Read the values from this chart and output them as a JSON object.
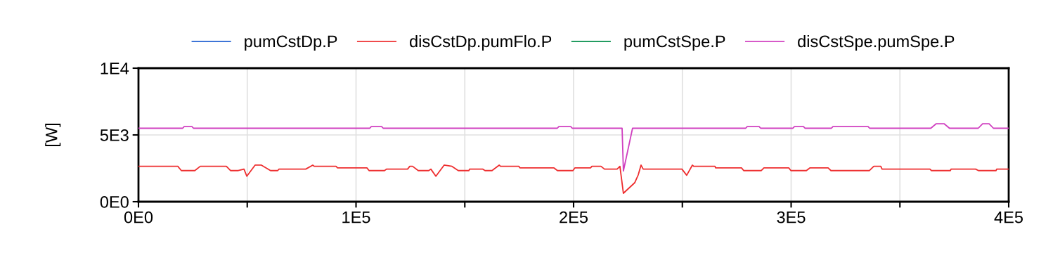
{
  "chart_data": {
    "type": "line",
    "ylabel": "[W]",
    "xlim": [
      0,
      400000
    ],
    "ylim": [
      0,
      10000
    ],
    "xticks": [
      {
        "value": 0,
        "label": "0E0"
      },
      {
        "value": 50000,
        "label": null
      },
      {
        "value": 100000,
        "label": "1E5"
      },
      {
        "value": 150000,
        "label": null
      },
      {
        "value": 200000,
        "label": "2E5"
      },
      {
        "value": 250000,
        "label": null
      },
      {
        "value": 300000,
        "label": "3E5"
      },
      {
        "value": 350000,
        "label": null
      },
      {
        "value": 400000,
        "label": "4E5"
      }
    ],
    "yticks": [
      {
        "value": 0,
        "label": "0E0"
      },
      {
        "value": 5000,
        "label": "5E3"
      },
      {
        "value": 10000,
        "label": "1E4"
      }
    ],
    "grid": true,
    "legend": "top",
    "line_style": "solid",
    "marker": "none",
    "x": [
      0,
      18100,
      19700,
      25900,
      28400,
      40400,
      42300,
      45900,
      48500,
      49800,
      53600,
      56500,
      60700,
      64000,
      64600,
      76900,
      80100,
      80800,
      90800,
      91500,
      105000,
      106000,
      113100,
      114000,
      123700,
      124700,
      126000,
      128600,
      133400,
      134400,
      136700,
      140500,
      144100,
      147000,
      151900,
      152200,
      158300,
      159300,
      162500,
      165800,
      166400,
      174800,
      175400,
      191000,
      192600,
      199700,
      200600,
      207800,
      208400,
      212600,
      214200,
      220000,
      221300,
      222900,
      228100,
      229700,
      231000,
      232000,
      249800,
      252000,
      254600,
      255200,
      265000,
      265300,
      277200,
      278200,
      286300,
      287500,
      298900,
      299900,
      307000,
      308600,
      317000,
      318300,
      336000,
      338000,
      341200,
      341800,
      363800,
      364500,
      373200,
      373500,
      384800,
      386100,
      394200,
      394500,
      400000
    ],
    "series": [
      {
        "name": "pumCstDp.P",
        "color": "#1f5fd0",
        "values": [
          null,
          null,
          null,
          null,
          null,
          null,
          null,
          null,
          null,
          null,
          null,
          null,
          null,
          null,
          null,
          null,
          null,
          null,
          null,
          null,
          null,
          null,
          null,
          null,
          null,
          null,
          null,
          null,
          null,
          null,
          null,
          null,
          null,
          null,
          null,
          null,
          null,
          null,
          null,
          null,
          null,
          null,
          null,
          null,
          null,
          null,
          null,
          null,
          null,
          null,
          null,
          null,
          null,
          null,
          null,
          null,
          null,
          null,
          null,
          null,
          null,
          null,
          null,
          null,
          null,
          null,
          null,
          null,
          null,
          null,
          null,
          null,
          null,
          null,
          null,
          null,
          null,
          null,
          null,
          null,
          null,
          null,
          null,
          null,
          null,
          null,
          null
        ]
      },
      {
        "name": "disCstDp.pumFlo.P",
        "color": "#ee2e2f",
        "values": [
          2650,
          2650,
          2330,
          2330,
          2650,
          2650,
          2330,
          2330,
          2440,
          1910,
          2740,
          2740,
          2330,
          2330,
          2440,
          2440,
          2740,
          2650,
          2650,
          2530,
          2530,
          2330,
          2330,
          2440,
          2440,
          2650,
          2650,
          2330,
          2330,
          2440,
          1910,
          2740,
          2650,
          2330,
          2330,
          2440,
          2440,
          2330,
          2330,
          2740,
          2650,
          2650,
          2530,
          2530,
          2330,
          2330,
          2530,
          2530,
          2650,
          2650,
          2440,
          2440,
          2650,
          630,
          1420,
          2000,
          2740,
          2440,
          2440,
          1980,
          2740,
          2650,
          2650,
          2530,
          2530,
          2330,
          2330,
          2530,
          2530,
          2330,
          2330,
          2530,
          2530,
          2330,
          2330,
          2650,
          2650,
          2440,
          2440,
          2330,
          2330,
          2440,
          2440,
          2330,
          2330,
          2440,
          2440
        ]
      },
      {
        "name": "pumCstSpe.P",
        "color": "#008c48",
        "values": [
          null,
          null,
          null,
          null,
          null,
          null,
          null,
          null,
          null,
          null,
          null,
          null,
          null,
          null,
          null,
          null,
          null,
          null,
          null,
          null,
          null,
          null,
          null,
          null,
          null,
          null,
          null,
          null,
          null,
          null,
          null,
          null,
          null,
          null,
          null,
          null,
          null,
          null,
          null,
          null,
          null,
          null,
          null,
          null,
          null,
          null,
          null,
          null,
          null,
          null,
          null,
          null,
          null,
          null,
          null,
          null,
          null,
          null,
          null,
          null,
          null,
          null,
          null,
          null,
          null,
          null,
          null,
          null,
          null,
          null,
          null,
          null,
          null,
          null,
          null,
          null,
          null,
          null,
          null,
          null,
          null,
          null,
          null,
          null,
          null,
          null,
          null
        ]
      },
      {
        "name": "disCstSpe.pumSpe.P",
        "color": "#d040c0",
        "x": [
          0,
          20300,
          21000,
          24600,
          25300,
          106300,
          107000,
          111800,
          112500,
          192500,
          193200,
          198700,
          199400,
          222300,
          222900,
          227100,
          279100,
          279800,
          285300,
          286000,
          300800,
          301500,
          305700,
          306400,
          318500,
          319200,
          335400,
          336100,
          364200,
          366700,
          370300,
          372800,
          386000,
          388000,
          391000,
          393000,
          400000
        ],
        "values": [
          5500,
          5500,
          5630,
          5630,
          5500,
          5500,
          5630,
          5630,
          5500,
          5500,
          5630,
          5630,
          5500,
          5500,
          2300,
          5500,
          5500,
          5630,
          5630,
          5500,
          5500,
          5630,
          5630,
          5500,
          5500,
          5630,
          5630,
          5500,
          5500,
          5840,
          5840,
          5500,
          5500,
          5840,
          5840,
          5500,
          5500
        ]
      }
    ]
  }
}
